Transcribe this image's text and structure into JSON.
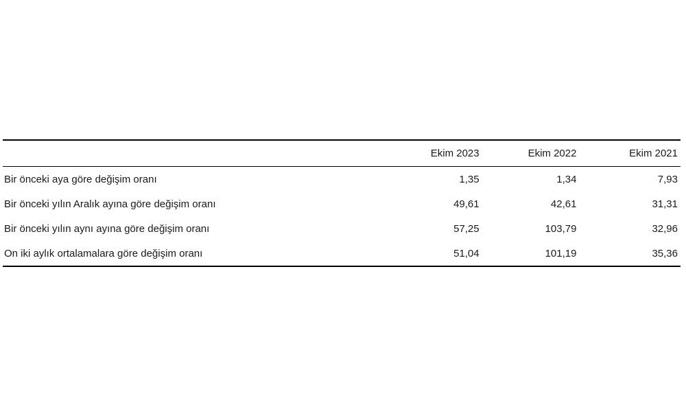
{
  "table": {
    "columns": [
      "",
      "Ekim 2023",
      "Ekim 2022",
      "Ekim 2021"
    ],
    "rows": [
      {
        "label": "Bir önceki aya göre değişim oranı",
        "values": [
          "1,35",
          "1,34",
          "7,93"
        ]
      },
      {
        "label": "Bir önceki yılın Aralık ayına göre değişim oranı",
        "values": [
          "49,61",
          "42,61",
          "31,31"
        ]
      },
      {
        "label": "Bir önceki yılın aynı ayına göre değişim oranı",
        "values": [
          "57,25",
          "103,79",
          "32,96"
        ]
      },
      {
        "label": "On iki aylık ortalamalara göre değişim oranı",
        "values": [
          "51,04",
          "101,19",
          "35,36"
        ]
      }
    ]
  }
}
